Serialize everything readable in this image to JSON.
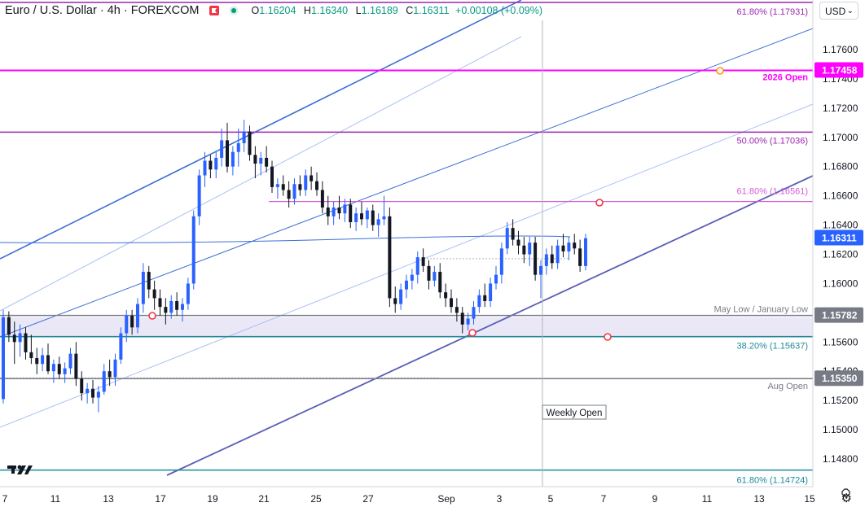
{
  "header": {
    "symbol": "Euro / U.S. Dollar · 4h · FOREXCOM",
    "open_label": "O",
    "open": "1.16204",
    "high_label": "H",
    "high": "1.16340",
    "low_label": "L",
    "low": "1.16189",
    "close_label": "C",
    "close": "1.16311",
    "change": "+0.00108 (+0.09%)",
    "currency": "USD"
  },
  "colors": {
    "up": "#2962ff",
    "down": "#131722",
    "magenta": "#ff00ff",
    "purple": "#9c27b0",
    "teal": "#1f8a9a",
    "gray": "#787b86",
    "fib_pink": "#d65bd6",
    "channel": "#5a5fb5"
  },
  "chart_data": {
    "type": "candlestick",
    "instrument": "EUR/USD",
    "timeframe": "4h",
    "x_axis_ticks": [
      "7",
      "11",
      "13",
      "17",
      "19",
      "21",
      "25",
      "27",
      "Sep",
      "3",
      "5",
      "7",
      "9",
      "11",
      "13",
      "15",
      "17",
      "21"
    ],
    "y_axis_ticks": [
      "1.17600",
      "1.17400",
      "1.17200",
      "1.17000",
      "1.16800",
      "1.16600",
      "1.16400",
      "1.16200",
      "1.16000",
      "1.15600",
      "1.15400",
      "1.15200",
      "1.15000",
      "1.14800"
    ],
    "ylim": [
      1.146,
      1.181
    ],
    "current_price": 1.16311,
    "price_labels": [
      {
        "text": "1.17458",
        "value": 1.17458,
        "bg": "#ff00ff"
      },
      {
        "text": "1.16311",
        "value": 1.16311,
        "bg": "#2962ff"
      },
      {
        "text": "1.15782",
        "value": 1.15782,
        "bg": "#787b86"
      },
      {
        "text": "1.15350",
        "value": 1.1535,
        "bg": "#787b86"
      }
    ],
    "levels": [
      {
        "label": "61.80% (1.17931)",
        "value": 1.17931,
        "color": "#9c27b0"
      },
      {
        "label": "2026 Open",
        "value": 1.17458,
        "color": "#ff00ff"
      },
      {
        "label": "50.00% (1.17036)",
        "value": 1.17036,
        "color": "#9c27b0"
      },
      {
        "label": "61.80% (1.16561)",
        "value": 1.16561,
        "color": "#d65bd6"
      },
      {
        "label": "May Low / January Low",
        "value": 1.15782,
        "color": "#787b86"
      },
      {
        "label": "38.20% (1.15637)",
        "value": 1.15637,
        "color": "#1f8a9a"
      },
      {
        "label": "Aug Open",
        "value": 1.1535,
        "color": "#787b86"
      },
      {
        "label": "61.80% (1.14724)",
        "value": 1.14724,
        "color": "#1f8a9a"
      }
    ],
    "annotations": [
      "Weekly Open"
    ],
    "candles": [
      [
        1.1521,
        1.1582,
        1.1518,
        1.1577
      ],
      [
        1.1577,
        1.1581,
        1.156,
        1.1565
      ],
      [
        1.1565,
        1.1574,
        1.1545,
        1.156
      ],
      [
        1.156,
        1.1572,
        1.155,
        1.1566
      ],
      [
        1.1566,
        1.157,
        1.1548,
        1.1553
      ],
      [
        1.1553,
        1.1565,
        1.1545,
        1.1549
      ],
      [
        1.1549,
        1.1556,
        1.1538,
        1.1545
      ],
      [
        1.1545,
        1.1556,
        1.154,
        1.1551
      ],
      [
        1.1551,
        1.1559,
        1.1538,
        1.154
      ],
      [
        1.154,
        1.1548,
        1.1532,
        1.1545
      ],
      [
        1.1545,
        1.155,
        1.1535,
        1.1538
      ],
      [
        1.1538,
        1.1546,
        1.1532,
        1.1542
      ],
      [
        1.1542,
        1.1556,
        1.1538,
        1.1552
      ],
      [
        1.1552,
        1.156,
        1.153,
        1.1535
      ],
      [
        1.1535,
        1.154,
        1.152,
        1.1525
      ],
      [
        1.1525,
        1.1532,
        1.1518,
        1.1528
      ],
      [
        1.1528,
        1.1534,
        1.1518,
        1.1522
      ],
      [
        1.1522,
        1.153,
        1.1512,
        1.1526
      ],
      [
        1.1526,
        1.1545,
        1.1524,
        1.154
      ],
      [
        1.154,
        1.1548,
        1.153,
        1.1536
      ],
      [
        1.1536,
        1.1552,
        1.153,
        1.1548
      ],
      [
        1.1548,
        1.157,
        1.1545,
        1.1566
      ],
      [
        1.1566,
        1.1582,
        1.156,
        1.1578
      ],
      [
        1.1578,
        1.1582,
        1.1565,
        1.157
      ],
      [
        1.157,
        1.159,
        1.1566,
        1.1586
      ],
      [
        1.1586,
        1.1614,
        1.158,
        1.1608
      ],
      [
        1.1608,
        1.1612,
        1.159,
        1.1596
      ],
      [
        1.1596,
        1.1602,
        1.1582,
        1.159
      ],
      [
        1.159,
        1.1596,
        1.1578,
        1.1584
      ],
      [
        1.1584,
        1.159,
        1.1572,
        1.158
      ],
      [
        1.158,
        1.1592,
        1.1576,
        1.1588
      ],
      [
        1.1588,
        1.1594,
        1.1578,
        1.1582
      ],
      [
        1.1582,
        1.159,
        1.1574,
        1.1586
      ],
      [
        1.1586,
        1.1604,
        1.1582,
        1.16
      ],
      [
        1.16,
        1.165,
        1.1596,
        1.1646
      ],
      [
        1.1646,
        1.1678,
        1.164,
        1.1674
      ],
      [
        1.1674,
        1.169,
        1.1666,
        1.1684
      ],
      [
        1.1684,
        1.1688,
        1.1672,
        1.1678
      ],
      [
        1.1678,
        1.169,
        1.1672,
        1.1686
      ],
      [
        1.1686,
        1.1706,
        1.168,
        1.1698
      ],
      [
        1.1698,
        1.171,
        1.1676,
        1.168
      ],
      [
        1.168,
        1.1694,
        1.1674,
        1.169
      ],
      [
        1.169,
        1.1706,
        1.168,
        1.1696
      ],
      [
        1.1696,
        1.1712,
        1.169,
        1.1704
      ],
      [
        1.1704,
        1.1708,
        1.1684,
        1.1688
      ],
      [
        1.1688,
        1.1694,
        1.1672,
        1.1682
      ],
      [
        1.1682,
        1.169,
        1.1674,
        1.1686
      ],
      [
        1.1686,
        1.1694,
        1.1676,
        1.168
      ],
      [
        1.168,
        1.1684,
        1.1662,
        1.1666
      ],
      [
        1.1666,
        1.1672,
        1.1658,
        1.1668
      ],
      [
        1.1668,
        1.1674,
        1.166,
        1.1664
      ],
      [
        1.1664,
        1.167,
        1.1652,
        1.1658
      ],
      [
        1.1658,
        1.1672,
        1.1654,
        1.1668
      ],
      [
        1.1668,
        1.1674,
        1.166,
        1.1664
      ],
      [
        1.1664,
        1.1678,
        1.166,
        1.1674
      ],
      [
        1.1674,
        1.168,
        1.1664,
        1.167
      ],
      [
        1.167,
        1.1676,
        1.166,
        1.1664
      ],
      [
        1.1664,
        1.167,
        1.1648,
        1.1652
      ],
      [
        1.1652,
        1.166,
        1.164,
        1.1646
      ],
      [
        1.1646,
        1.1656,
        1.164,
        1.1652
      ],
      [
        1.1652,
        1.166,
        1.1644,
        1.1648
      ],
      [
        1.1648,
        1.1658,
        1.1642,
        1.1654
      ],
      [
        1.1654,
        1.1658,
        1.1638,
        1.1642
      ],
      [
        1.1642,
        1.1652,
        1.1636,
        1.1648
      ],
      [
        1.1648,
        1.1656,
        1.164,
        1.1644
      ],
      [
        1.1644,
        1.1652,
        1.1638,
        1.165
      ],
      [
        1.165,
        1.1654,
        1.1636,
        1.164
      ],
      [
        1.164,
        1.1648,
        1.1632,
        1.1644
      ],
      [
        1.1644,
        1.166,
        1.164,
        1.1646
      ],
      [
        1.1646,
        1.1652,
        1.1584,
        1.159
      ],
      [
        1.159,
        1.1598,
        1.158,
        1.1586
      ],
      [
        1.1586,
        1.16,
        1.1582,
        1.1596
      ],
      [
        1.1596,
        1.1606,
        1.159,
        1.1602
      ],
      [
        1.1602,
        1.161,
        1.1596,
        1.1606
      ],
      [
        1.1606,
        1.1622,
        1.16,
        1.1618
      ],
      [
        1.1618,
        1.1624,
        1.1608,
        1.1612
      ],
      [
        1.1612,
        1.1616,
        1.1596,
        1.1602
      ],
      [
        1.1602,
        1.1612,
        1.1598,
        1.1608
      ],
      [
        1.1608,
        1.1614,
        1.159,
        1.1594
      ],
      [
        1.1594,
        1.16,
        1.1584,
        1.159
      ],
      [
        1.159,
        1.1596,
        1.158,
        1.1584
      ],
      [
        1.1584,
        1.159,
        1.1574,
        1.158
      ],
      [
        1.158,
        1.1584,
        1.1566,
        1.1572
      ],
      [
        1.1572,
        1.158,
        1.1568,
        1.1576
      ],
      [
        1.1576,
        1.1588,
        1.1572,
        1.1584
      ],
      [
        1.1584,
        1.1596,
        1.158,
        1.1592
      ],
      [
        1.1592,
        1.16,
        1.1584,
        1.1588
      ],
      [
        1.1588,
        1.1604,
        1.1584,
        1.16
      ],
      [
        1.16,
        1.1612,
        1.1596,
        1.1606
      ],
      [
        1.1606,
        1.1628,
        1.16,
        1.1624
      ],
      [
        1.1624,
        1.1642,
        1.162,
        1.1638
      ],
      [
        1.1638,
        1.1644,
        1.1626,
        1.163
      ],
      [
        1.163,
        1.1636,
        1.162,
        1.1626
      ],
      [
        1.1626,
        1.1632,
        1.1614,
        1.162
      ],
      [
        1.162,
        1.1632,
        1.1612,
        1.1628
      ],
      [
        1.1628,
        1.1632,
        1.1602,
        1.1606
      ],
      [
        1.1606,
        1.1616,
        1.159,
        1.1612
      ],
      [
        1.1612,
        1.1624,
        1.1606,
        1.162
      ],
      [
        1.162,
        1.1626,
        1.161,
        1.1614
      ],
      [
        1.1614,
        1.163,
        1.161,
        1.1626
      ],
      [
        1.1626,
        1.1634,
        1.1618,
        1.1622
      ],
      [
        1.1622,
        1.1632,
        1.1616,
        1.1628
      ],
      [
        1.1628,
        1.1634,
        1.162,
        1.1624
      ],
      [
        1.1624,
        1.163,
        1.1608,
        1.1612
      ],
      [
        1.1612,
        1.1634,
        1.1609,
        1.1631
      ]
    ]
  },
  "watermark": "TV"
}
